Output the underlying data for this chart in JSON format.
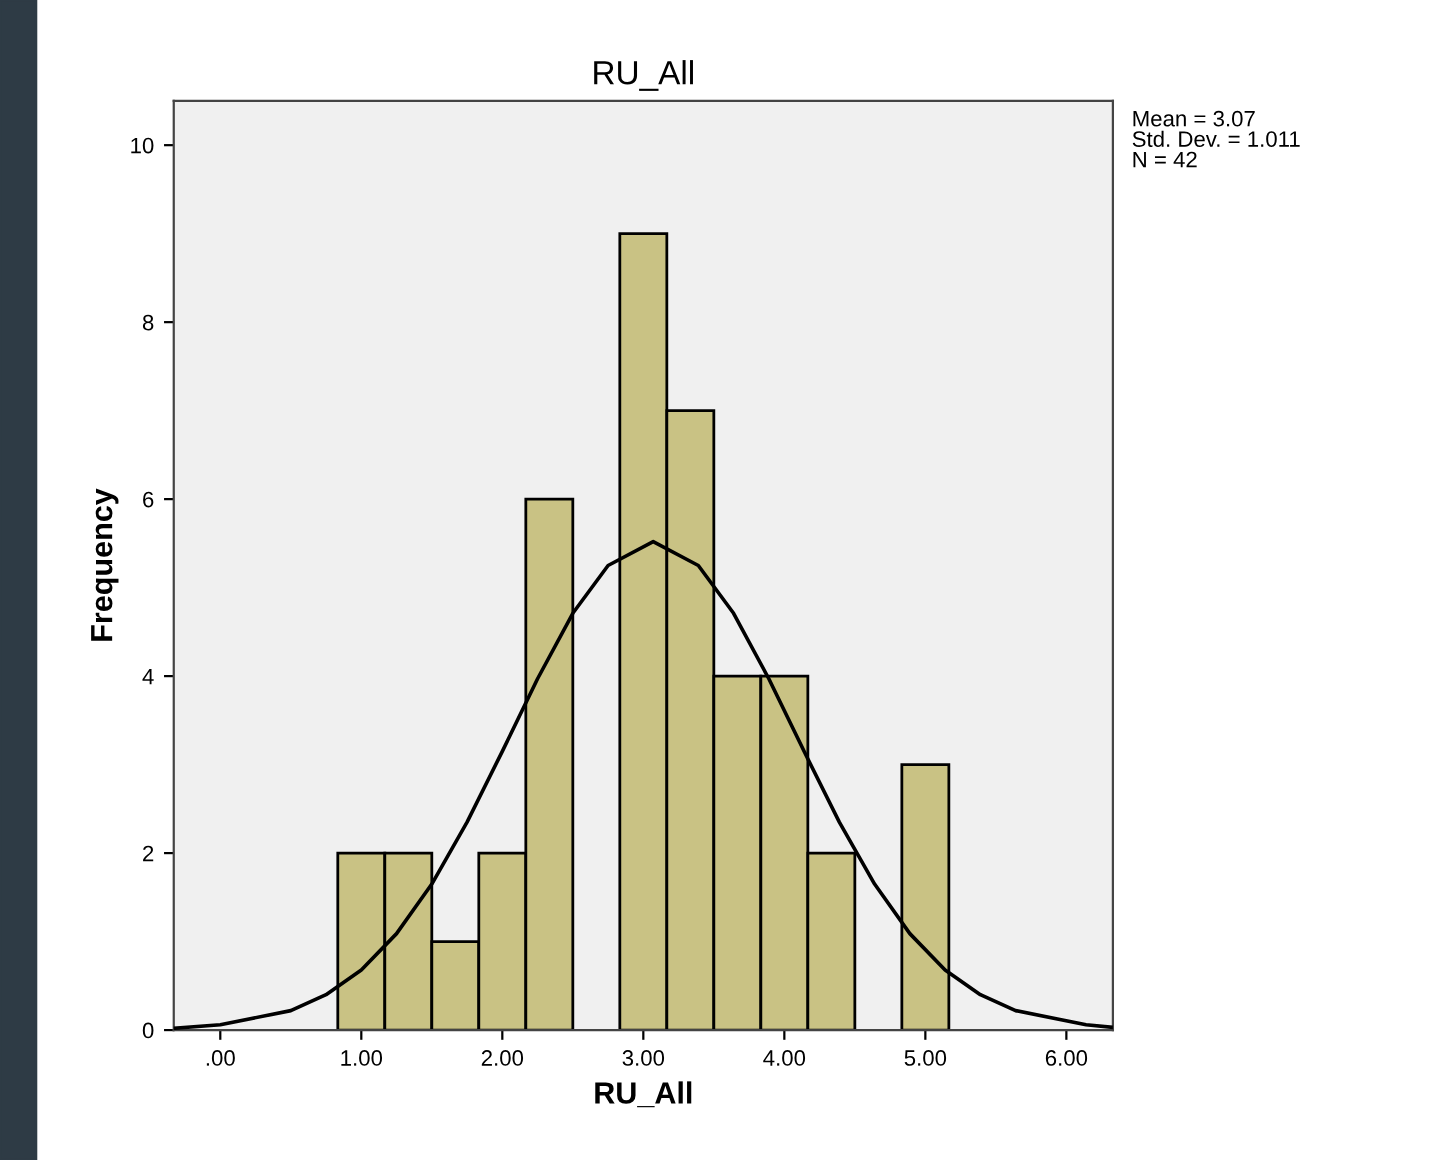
{
  "chart_data": {
    "type": "histogram",
    "title": "RU_All",
    "xlabel": "RU_All",
    "ylabel": "Frequency",
    "bins": [
      0.8333,
      1.1667,
      1.5,
      1.8333,
      2.1667,
      2.5,
      2.8333,
      3.1667,
      3.5,
      3.8333,
      4.1667,
      4.5,
      4.8333,
      5.1667
    ],
    "values": [
      2,
      2,
      1,
      2,
      6,
      0,
      9,
      7,
      4,
      4,
      2,
      0,
      3
    ],
    "color": "#c9c284",
    "series": [
      {
        "type": "line",
        "color": "#000000",
        "x": [
          -0.33,
          0,
          0.5,
          0.75,
          1.0,
          1.25,
          1.5,
          1.75,
          2.0,
          2.25,
          2.5,
          2.75,
          3.07,
          3.39,
          3.64,
          3.89,
          4.14,
          4.39,
          4.64,
          4.89,
          5.14,
          5.39,
          5.64,
          6.14,
          6.33
        ],
        "values": [
          0.02,
          0.06,
          0.22,
          0.4,
          0.68,
          1.09,
          1.65,
          2.35,
          3.15,
          3.97,
          4.71,
          5.25,
          5.52,
          5.25,
          4.71,
          3.97,
          3.15,
          2.35,
          1.65,
          1.09,
          0.68,
          0.4,
          0.22,
          0.06,
          0.03
        ]
      }
    ],
    "xlim": [
      -0.33,
      6.33
    ],
    "ylim": [
      0,
      10.5
    ],
    "xticks": [
      {
        "value": 0,
        "label": ".00"
      },
      {
        "value": 1,
        "label": "1.00"
      },
      {
        "value": 2,
        "label": "2.00"
      },
      {
        "value": 3,
        "label": "3.00"
      },
      {
        "value": 4,
        "label": "4.00"
      },
      {
        "value": 5,
        "label": "5.00"
      },
      {
        "value": 6,
        "label": "6.00"
      }
    ],
    "yticks": [
      0,
      2,
      4,
      6,
      8,
      10
    ],
    "grid": false,
    "annotations": [
      "Mean = 3.07",
      "Std. Dev. = 1.011",
      "N = 42"
    ]
  }
}
